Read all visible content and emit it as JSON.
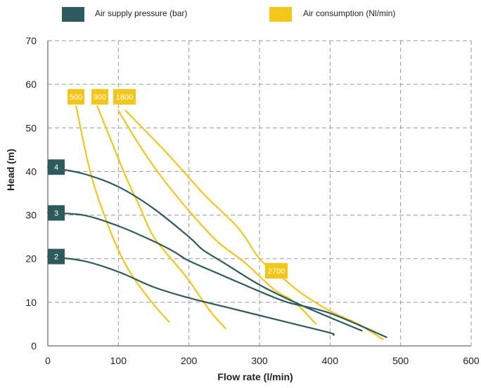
{
  "chart_data": {
    "type": "line",
    "xlabel": "Flow rate (l/min)",
    "ylabel": "Head (m)",
    "xlim": [
      0,
      600
    ],
    "ylim": [
      0,
      70
    ],
    "xticks": [
      "0",
      "100",
      "200",
      "300",
      "400",
      "500",
      "600"
    ],
    "yticks": [
      "0",
      "10",
      "20",
      "30",
      "40",
      "50",
      "60",
      "70"
    ],
    "grid": true,
    "legend_position": "top",
    "legend": [
      {
        "label": "Air supply pressure (bar)",
        "color": "#2d5a5c"
      },
      {
        "label": "Air consumption (Nl/min)",
        "color": "#f5c518"
      }
    ],
    "pressure_series": [
      {
        "name": "4",
        "points": [
          [
            0,
            41
          ],
          [
            50,
            39.5
          ],
          [
            100,
            36.5
          ],
          [
            150,
            31.5
          ],
          [
            200,
            25
          ],
          [
            220,
            22
          ],
          [
            250,
            19
          ],
          [
            300,
            14
          ],
          [
            350,
            10
          ],
          [
            400,
            6.5
          ],
          [
            445,
            3.5
          ]
        ]
      },
      {
        "name": "3",
        "points": [
          [
            0,
            30.5
          ],
          [
            50,
            30
          ],
          [
            100,
            27.5
          ],
          [
            150,
            24
          ],
          [
            180,
            21.5
          ],
          [
            200,
            19.5
          ],
          [
            250,
            16
          ],
          [
            300,
            12.5
          ],
          [
            340,
            10
          ],
          [
            400,
            7.5
          ],
          [
            480,
            2
          ]
        ]
      },
      {
        "name": "2",
        "points": [
          [
            0,
            20.5
          ],
          [
            50,
            19.5
          ],
          [
            100,
            17
          ],
          [
            150,
            13.5
          ],
          [
            200,
            11
          ],
          [
            250,
            9
          ],
          [
            300,
            7
          ],
          [
            350,
            5
          ],
          [
            400,
            3
          ],
          [
            405,
            2.5
          ]
        ]
      }
    ],
    "consumption_series": [
      {
        "name": "500",
        "points": [
          [
            40,
            55
          ],
          [
            60,
            40
          ],
          [
            80,
            30
          ],
          [
            100,
            22
          ],
          [
            120,
            16
          ],
          [
            150,
            9.5
          ],
          [
            172,
            5.5
          ]
        ]
      },
      {
        "name": "900",
        "points": [
          [
            70,
            55
          ],
          [
            90,
            47
          ],
          [
            110,
            39
          ],
          [
            130,
            32
          ],
          [
            150,
            25
          ],
          [
            180,
            19
          ],
          [
            200,
            15
          ],
          [
            230,
            8
          ],
          [
            252,
            4
          ]
        ]
      },
      {
        "name": "1800",
        "points": [
          [
            100,
            54
          ],
          [
            130,
            46
          ],
          [
            160,
            39
          ],
          [
            200,
            31
          ],
          [
            240,
            24
          ],
          [
            280,
            19
          ],
          [
            320,
            13
          ],
          [
            350,
            10
          ],
          [
            380,
            5
          ]
        ]
      },
      {
        "name": "2700",
        "points": [
          [
            110,
            54
          ],
          [
            170,
            44
          ],
          [
            220,
            35
          ],
          [
            270,
            27
          ],
          [
            300,
            20
          ],
          [
            330,
            16
          ],
          [
            360,
            12
          ],
          [
            400,
            8
          ],
          [
            440,
            5
          ],
          [
            475,
            1.5
          ]
        ]
      }
    ]
  }
}
